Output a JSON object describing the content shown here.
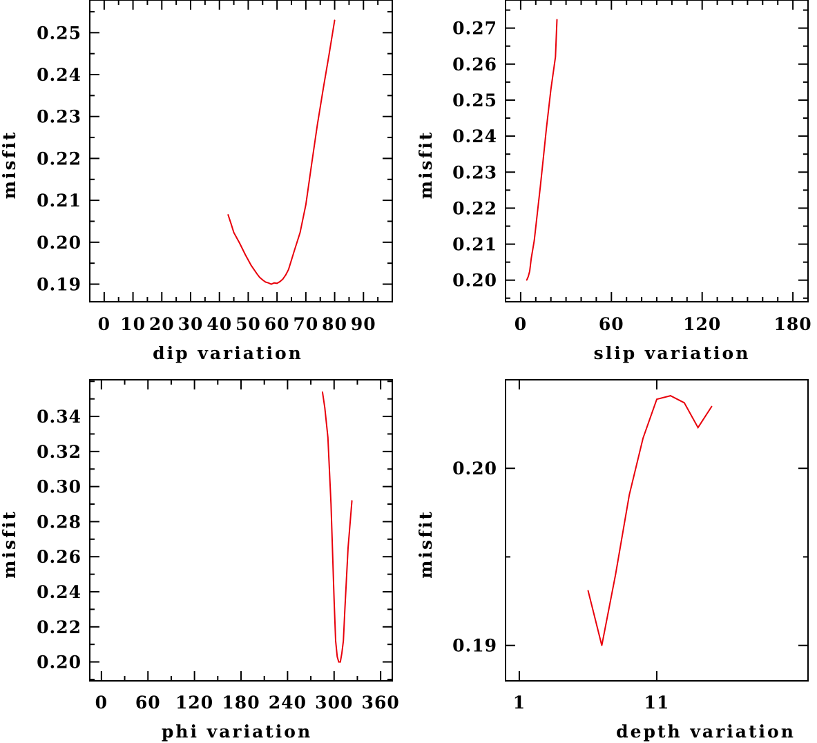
{
  "chart_data": [
    {
      "type": "line",
      "xlabel": "dip    variation",
      "ylabel": "misfit",
      "xlim": [
        -5,
        100
      ],
      "ylim": [
        0.1858,
        0.2578
      ],
      "xticks": [
        0,
        10,
        20,
        30,
        40,
        50,
        60,
        70,
        80,
        90
      ],
      "xtick_labels": [
        "0",
        "10",
        "20",
        "30",
        "40",
        "50",
        "60",
        "70",
        "80",
        "90"
      ],
      "x_minor_step": 5,
      "yticks": [
        0.19,
        0.2,
        0.21,
        0.22,
        0.23,
        0.24,
        0.25
      ],
      "ytick_labels": [
        "0.19",
        "0.20",
        "0.21",
        "0.22",
        "0.23",
        "0.24",
        "0.25"
      ],
      "y_minor_step": 0.005,
      "color": "#e8000b",
      "x": [
        43,
        44,
        45,
        47,
        49,
        51,
        53,
        54,
        55,
        56,
        57,
        58,
        59,
        60,
        61,
        62,
        63,
        64,
        66,
        68,
        70,
        72,
        74,
        76,
        78,
        80
      ],
      "y": [
        0.2066,
        0.2045,
        0.2023,
        0.1998,
        0.197,
        0.1945,
        0.1925,
        0.1916,
        0.191,
        0.1905,
        0.1903,
        0.19,
        0.1903,
        0.1902,
        0.1906,
        0.1912,
        0.1922,
        0.1935,
        0.198,
        0.2023,
        0.209,
        0.2186,
        0.228,
        0.2365,
        0.2445,
        0.253
      ]
    },
    {
      "type": "line",
      "xlabel": "slip   variation",
      "ylabel": "misfit",
      "xlim": [
        -10,
        190
      ],
      "ylim": [
        0.194,
        0.2778
      ],
      "xticks": [
        0,
        60,
        120,
        180
      ],
      "xtick_labels": [
        "0",
        "60",
        "120",
        "180"
      ],
      "x_minor_step": 10,
      "yticks": [
        0.2,
        0.21,
        0.22,
        0.23,
        0.24,
        0.25,
        0.26,
        0.27
      ],
      "ytick_labels": [
        "0.20",
        "0.21",
        "0.22",
        "0.23",
        "0.24",
        "0.25",
        "0.26",
        "0.27"
      ],
      "y_minor_step": 0.005,
      "color": "#e8000b",
      "x": [
        4,
        5,
        6,
        7,
        9,
        11,
        13,
        15,
        17,
        20,
        23,
        24
      ],
      "y": [
        0.2,
        0.201,
        0.2025,
        0.206,
        0.211,
        0.2185,
        0.226,
        0.234,
        0.242,
        0.253,
        0.262,
        0.2724
      ]
    },
    {
      "type": "line",
      "xlabel": "phi    variation",
      "ylabel": "misfit",
      "xlim": [
        -15,
        375
      ],
      "ylim": [
        0.1892,
        0.3609
      ],
      "xticks": [
        0,
        60,
        120,
        180,
        240,
        300,
        360
      ],
      "xtick_labels": [
        "0",
        "60",
        "120",
        "180",
        "240",
        "300",
        "360"
      ],
      "x_minor_step": 30,
      "yticks": [
        0.2,
        0.22,
        0.24,
        0.26,
        0.28,
        0.3,
        0.32,
        0.34
      ],
      "ytick_labels": [
        "0.20",
        "0.22",
        "0.24",
        "0.26",
        "0.28",
        "0.30",
        "0.32",
        "0.34"
      ],
      "y_minor_step": 0.01,
      "color": "#e8000b",
      "x": [
        285,
        288,
        292,
        296,
        300,
        302,
        304,
        306,
        308,
        310,
        312,
        314,
        318,
        323
      ],
      "y": [
        0.354,
        0.345,
        0.328,
        0.29,
        0.235,
        0.212,
        0.203,
        0.2,
        0.2,
        0.205,
        0.212,
        0.231,
        0.265,
        0.292
      ]
    },
    {
      "type": "line",
      "xlabel": "depth  variation",
      "ylabel": "misfit",
      "xlim": [
        0,
        22
      ],
      "ylim": [
        0.188,
        0.205
      ],
      "xticks": [
        1,
        11
      ],
      "xtick_labels": [
        "1",
        "11"
      ],
      "x_minor_step": null,
      "yticks": [
        0.19,
        0.2
      ],
      "ytick_labels": [
        "0.19",
        "0.20"
      ],
      "y_minor_step": 0.005,
      "color": "#e8000b",
      "x": [
        6,
        7,
        8,
        9,
        10,
        11,
        12,
        13,
        14,
        15
      ],
      "y": [
        0.1931,
        0.19,
        0.194,
        0.1985,
        0.2017,
        0.2039,
        0.2041,
        0.2037,
        0.2023,
        0.2035
      ]
    }
  ]
}
